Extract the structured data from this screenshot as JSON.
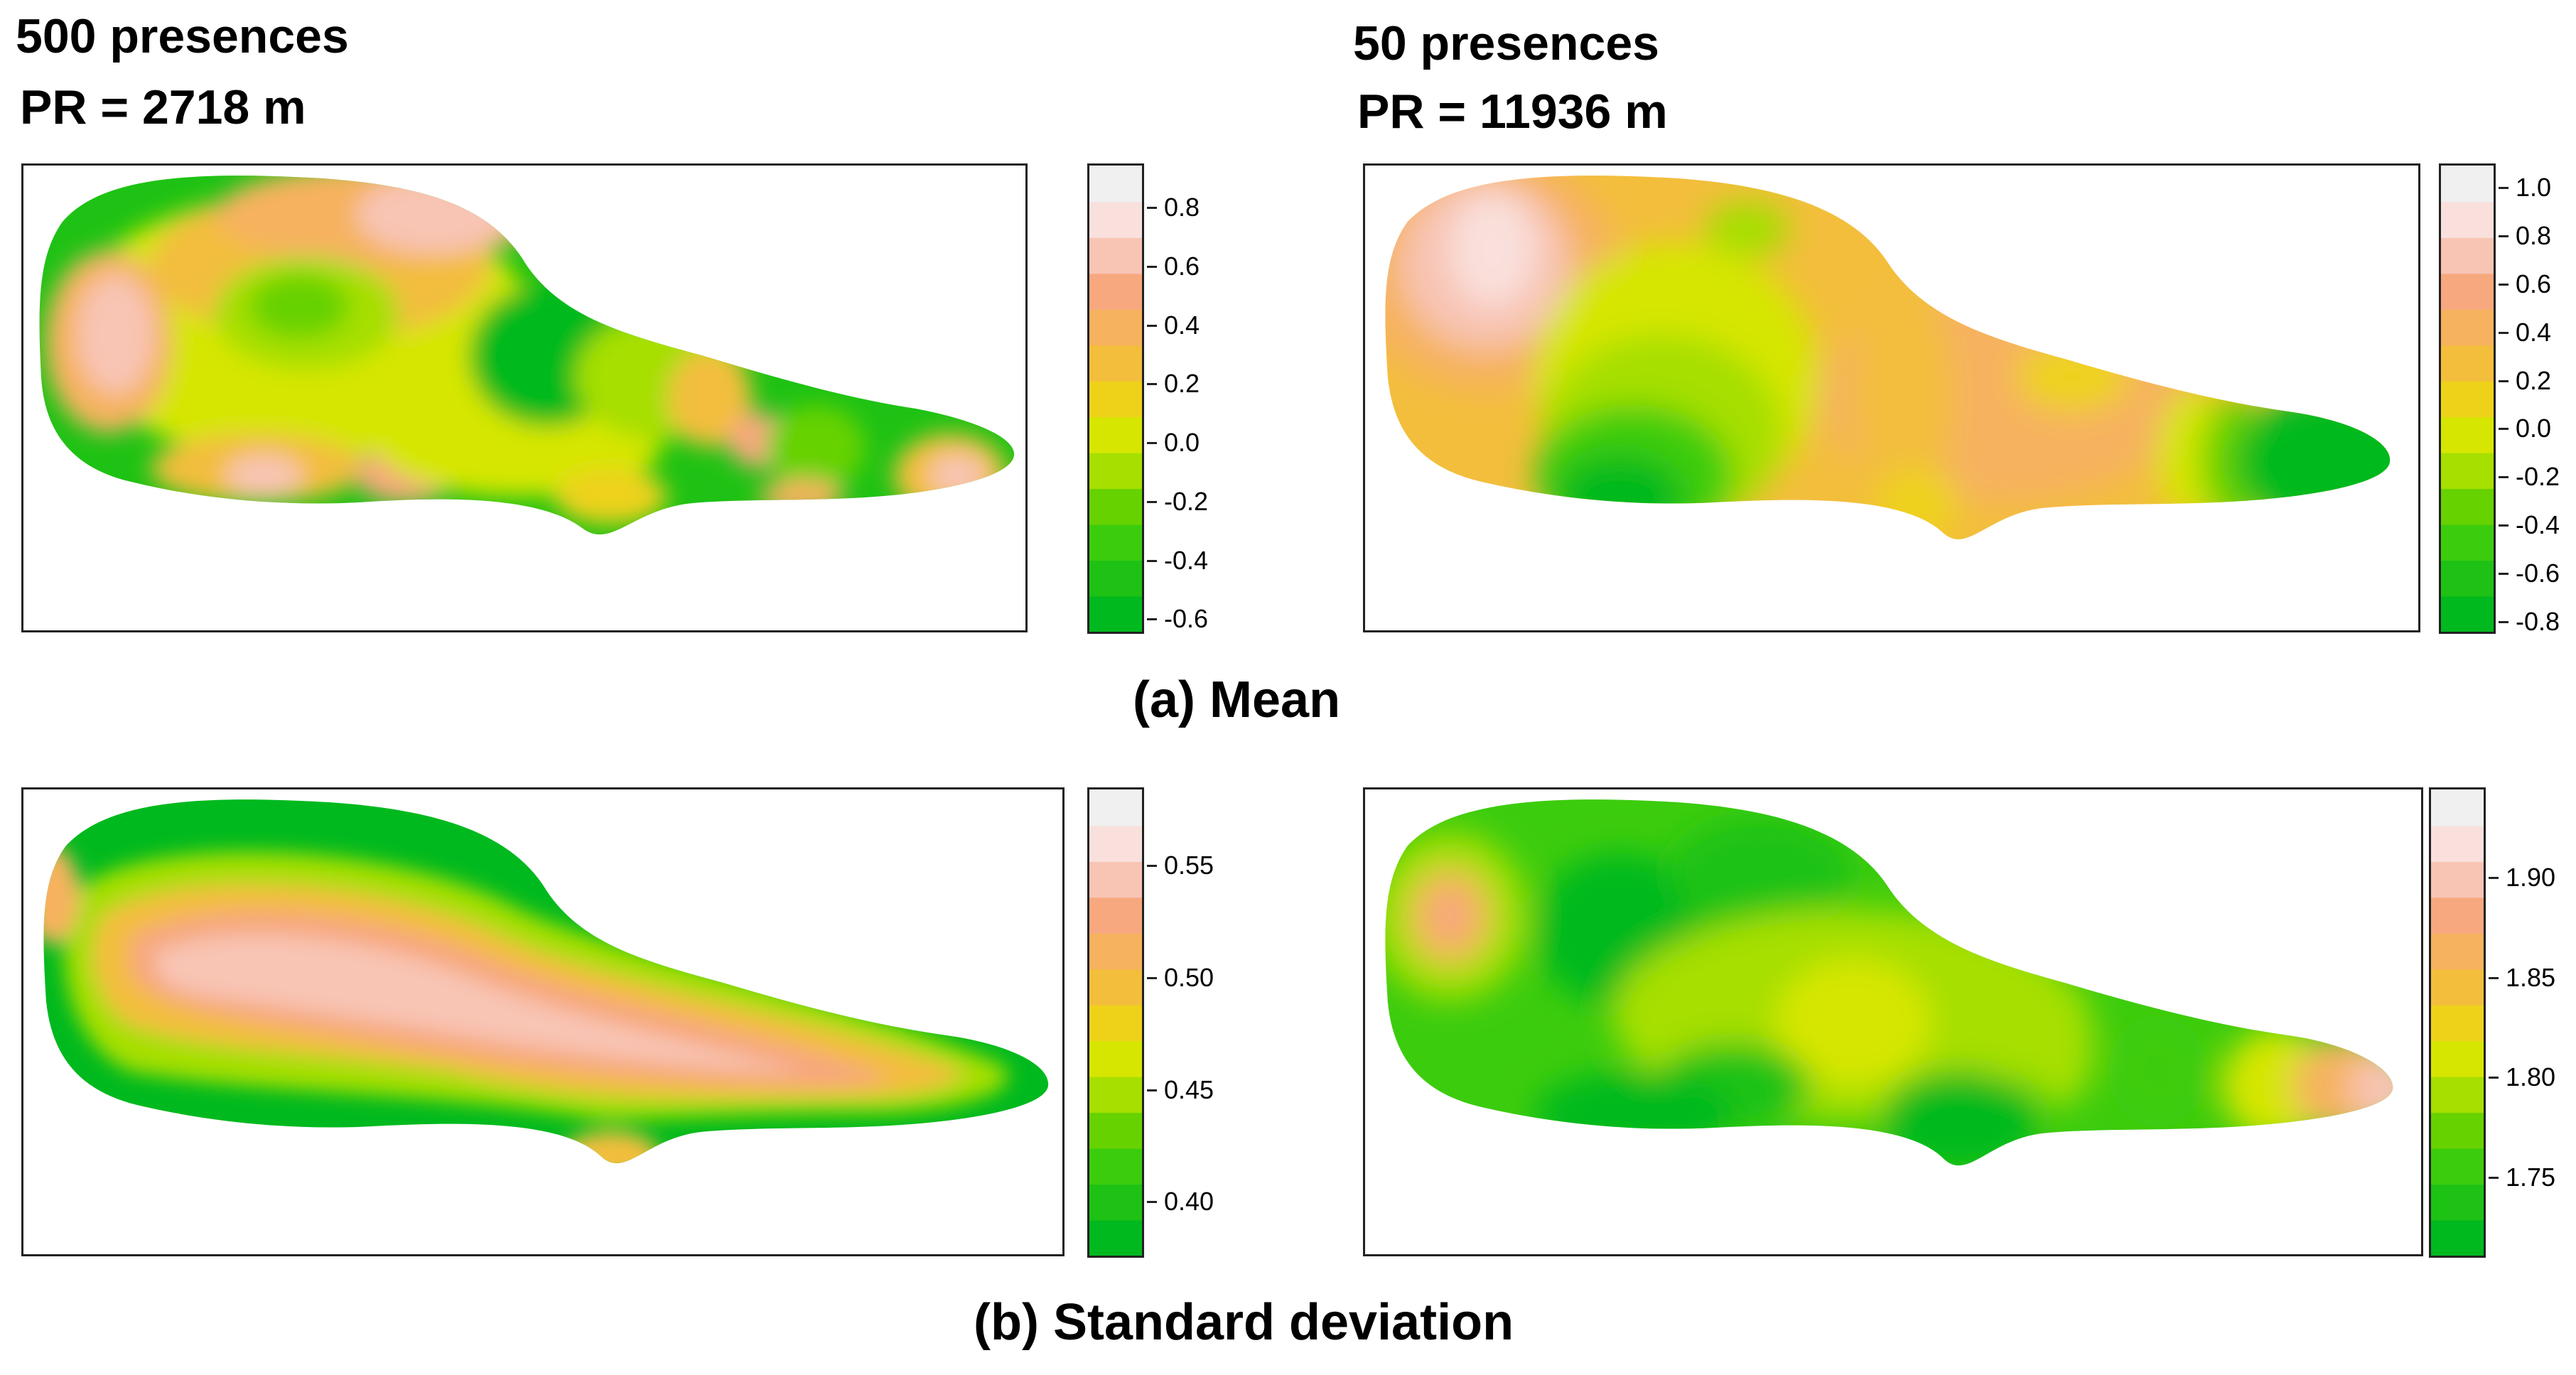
{
  "headings": {
    "left_title": "500 presences",
    "left_pr": "PR = 2718 m",
    "right_title": "50 presences",
    "right_pr": "PR = 11936 m"
  },
  "captions": {
    "mean": "(a) Mean",
    "sd": "(b) Standard deviation"
  },
  "palette": [
    "#00b91e",
    "#1ec214",
    "#3ccc0e",
    "#66d200",
    "#a6df00",
    "#d6e600",
    "#eed21a",
    "#f3be3c",
    "#f6b25e",
    "#f7a87e",
    "#f8c4b4",
    "#f9e0dc",
    "#f0f0f0"
  ],
  "chart_data": [
    {
      "type": "heatmap",
      "panel": "mean-500",
      "title": "500 presences",
      "subtitle": "PR = 2718 m",
      "caption": "(a) Mean",
      "colorbar_ticks": [
        "0.8",
        "0.6",
        "0.4",
        "0.2",
        "0.0",
        "-0.2",
        "-0.4",
        "-0.6"
      ],
      "colorbar_range": [
        -0.65,
        0.95
      ]
    },
    {
      "type": "heatmap",
      "panel": "mean-50",
      "title": "50 presences",
      "subtitle": "PR = 11936 m",
      "caption": "(a) Mean",
      "colorbar_ticks": [
        "1.0",
        "0.8",
        "0.6",
        "0.4",
        "0.2",
        "0.0",
        "-0.2",
        "-0.4",
        "-0.6",
        "-0.8"
      ],
      "colorbar_range": [
        -0.85,
        1.1
      ]
    },
    {
      "type": "heatmap",
      "panel": "sd-500",
      "caption": "(b) Standard deviation",
      "colorbar_ticks": [
        "0.55",
        "0.50",
        "0.45",
        "0.40"
      ],
      "colorbar_range": [
        0.375,
        0.585
      ]
    },
    {
      "type": "heatmap",
      "panel": "sd-50",
      "caption": "(b) Standard deviation",
      "colorbar_ticks": [
        "1.90",
        "1.85",
        "1.80",
        "1.75"
      ],
      "colorbar_range": [
        1.71,
        1.945
      ]
    }
  ]
}
